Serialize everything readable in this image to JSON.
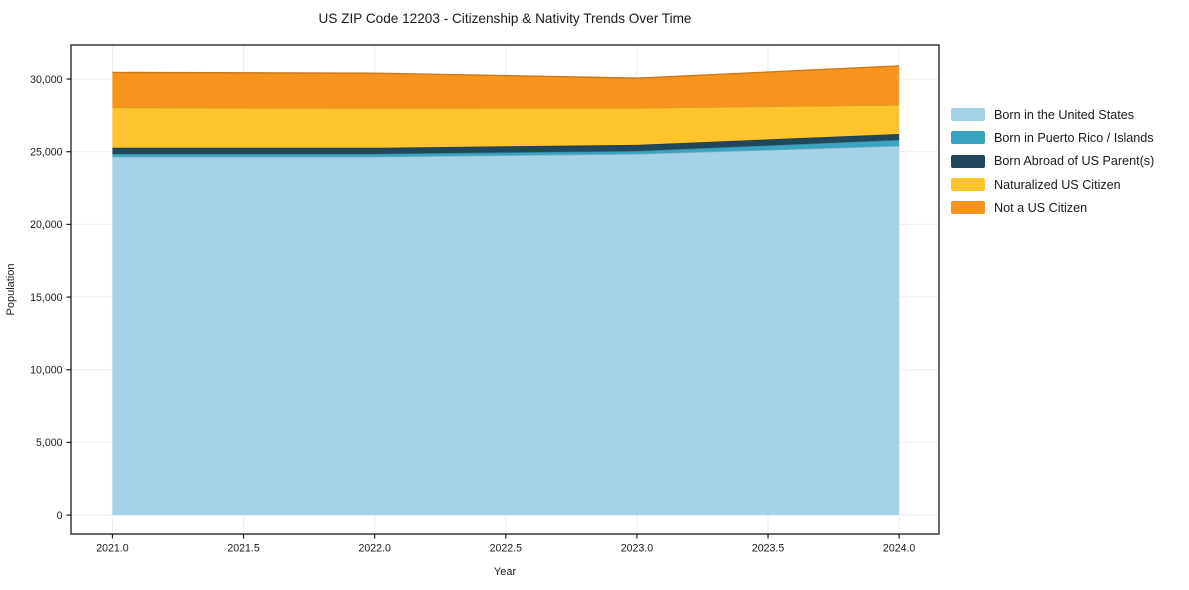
{
  "figure": {
    "title": "US ZIP Code 12203 - Citizenship & Nativity Trends Over Time",
    "background": "#ffffff"
  },
  "chart_data": {
    "type": "area",
    "stacked": true,
    "title": "US ZIP Code 12203 - Citizenship & Nativity Trends Over Time",
    "xlabel": "Year",
    "ylabel": "Population",
    "x": [
      2021,
      2022,
      2023,
      2024
    ],
    "series": [
      {
        "name": "Born in the United States",
        "color": "#A6D2E8",
        "values": [
          24650,
          24650,
          24850,
          25400
        ]
      },
      {
        "name": "Born in Puerto Rico / Islands",
        "color": "#3AA5C2",
        "values": [
          200,
          200,
          200,
          410
        ]
      },
      {
        "name": "Born Abroad of US Parent(s)",
        "color": "#21475C",
        "values": [
          420,
          420,
          420,
          410
        ]
      },
      {
        "name": "Naturalized US Citizen",
        "color": "#FDC42D",
        "values": [
          2770,
          2720,
          2540,
          2000
        ]
      },
      {
        "name": "Not a US Citizen",
        "color": "#F7941E",
        "values": [
          2410,
          2410,
          2050,
          2680
        ]
      }
    ],
    "totals": [
      30450,
      30400,
      30060,
      30900
    ],
    "x_ticks": {
      "values": [
        2021,
        2021.5,
        2022,
        2022.5,
        2023,
        2023.5,
        2024
      ],
      "labels": [
        "2021.0",
        "2021.5",
        "2022.0",
        "2022.5",
        "2023.0",
        "2023.5",
        "2024.0"
      ]
    },
    "y_ticks": {
      "values": [
        0,
        5000,
        10000,
        15000,
        20000,
        25000,
        30000
      ],
      "labels": [
        "0",
        "5,000",
        "10,000",
        "15,000",
        "20,000",
        "25,000",
        "30,000"
      ]
    },
    "xlim": [
      2020.842,
      2024.152
    ],
    "ylim": [
      -1300,
      32340
    ],
    "grid": true,
    "legend_position": "right"
  },
  "colors": {
    "spine": "#1a1a1a",
    "grid": "#eeeeee",
    "text": "#1a1a1a"
  }
}
